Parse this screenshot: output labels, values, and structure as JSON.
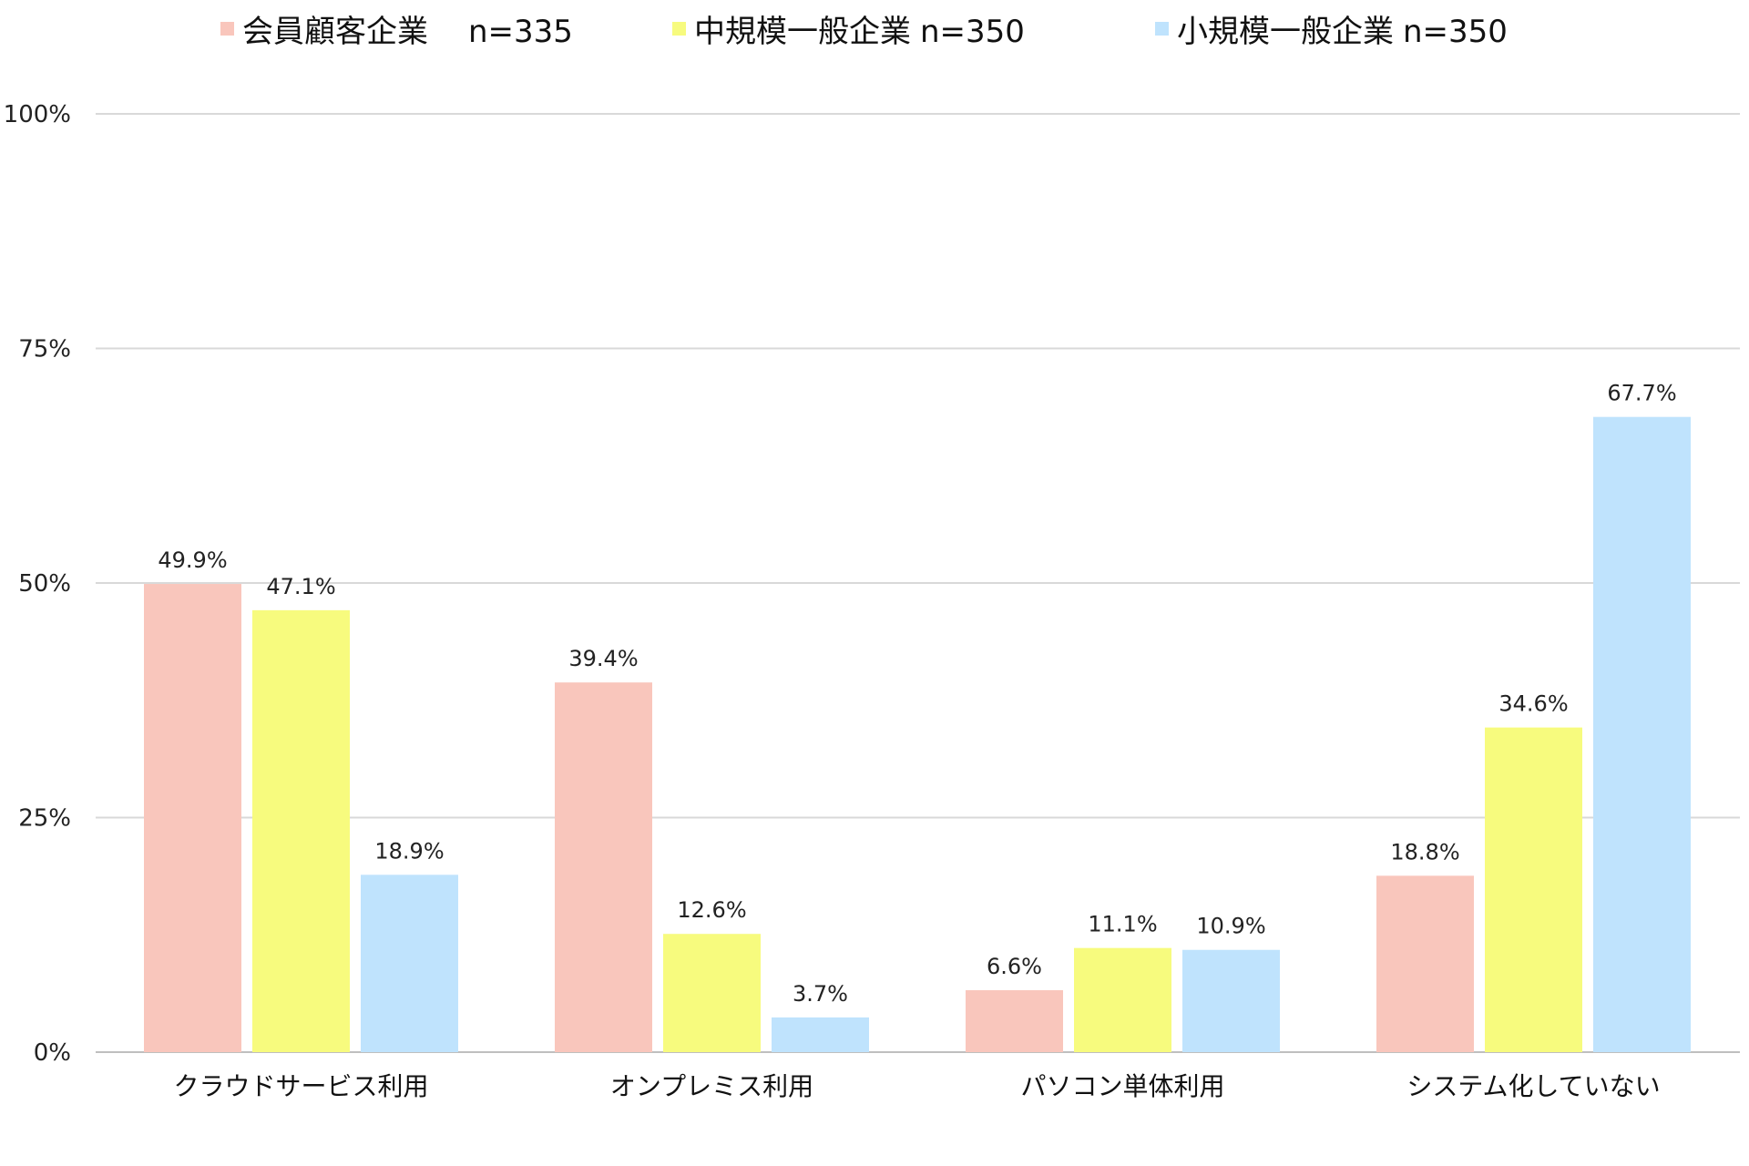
{
  "chart_data": {
    "type": "bar",
    "title": "",
    "xlabel": "",
    "ylabel": "",
    "ylim": [
      0,
      100
    ],
    "yticks": [
      0,
      25,
      50,
      75,
      100
    ],
    "ytick_labels": [
      "0%",
      "25%",
      "50%",
      "75%",
      "100%"
    ],
    "value_unit": "%",
    "grid": true,
    "legend_position": "top",
    "categories": [
      "クラウドサービス利用",
      "オンプレミス利用",
      "パソコン単体利用",
      "システム化していない"
    ],
    "series": [
      {
        "name": "会員顧客企業",
        "n_label": "n=335",
        "color": "#f9c6bc",
        "values": [
          49.9,
          39.4,
          6.6,
          18.8
        ]
      },
      {
        "name": "中規模一般企業",
        "n_label": "n=350",
        "color": "#f7fb7e",
        "values": [
          47.1,
          12.6,
          11.1,
          34.6
        ]
      },
      {
        "name": "小規模一般企業",
        "n_label": "n=350",
        "color": "#bfe3fd",
        "values": [
          18.9,
          3.7,
          10.9,
          67.7
        ]
      }
    ]
  }
}
